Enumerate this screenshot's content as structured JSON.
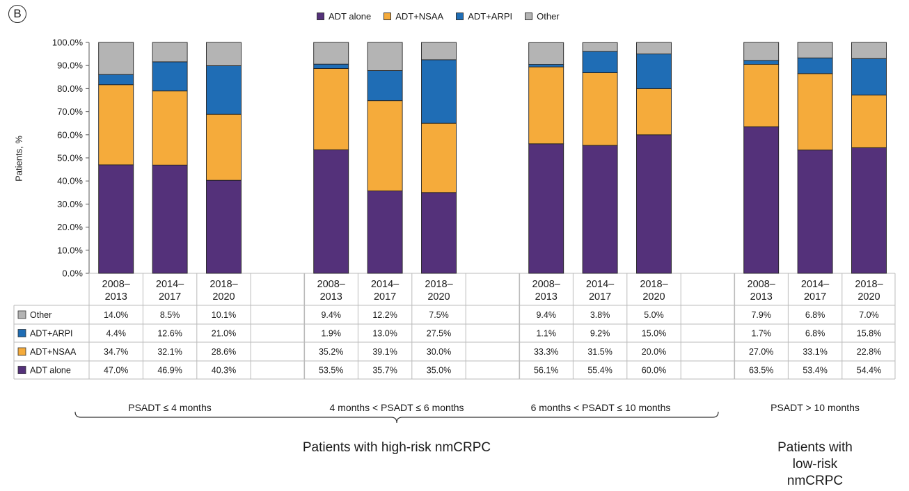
{
  "panel_label": "B",
  "chart_data": {
    "type": "bar",
    "stacked": true,
    "ylabel": "Patients, %",
    "ylim": [
      0,
      100
    ],
    "yticks": [
      "0.0%",
      "10.0%",
      "20.0%",
      "30.0%",
      "40.0%",
      "50.0%",
      "60.0%",
      "70.0%",
      "80.0%",
      "90.0%",
      "100.0%"
    ],
    "legend_position": "top-center",
    "series": [
      {
        "name": "ADT alone",
        "color": "#54317a"
      },
      {
        "name": "ADT+NSAA",
        "color": "#f5ab3b"
      },
      {
        "name": "ADT+ARPI",
        "color": "#1f6db5"
      },
      {
        "name": "Other",
        "color": "#b4b4b4"
      }
    ],
    "groups": [
      {
        "label": "PSADT ≤ 4 months",
        "bars": [
          {
            "period": [
              "2008–",
              "2013"
            ],
            "values": {
              "ADT alone": 47.0,
              "ADT+NSAA": 34.7,
              "ADT+ARPI": 4.4,
              "Other": 14.0
            },
            "labels": {
              "ADT alone": "47.0%",
              "ADT+NSAA": "34.7%",
              "ADT+ARPI": "4.4%",
              "Other": "14.0%"
            }
          },
          {
            "period": [
              "2014–",
              "2017"
            ],
            "values": {
              "ADT alone": 46.9,
              "ADT+NSAA": 32.1,
              "ADT+ARPI": 12.6,
              "Other": 8.5
            },
            "labels": {
              "ADT alone": "46.9%",
              "ADT+NSAA": "32.1%",
              "ADT+ARPI": "12.6%",
              "Other": "8.5%"
            }
          },
          {
            "period": [
              "2018–",
              "2020"
            ],
            "values": {
              "ADT alone": 40.3,
              "ADT+NSAA": 28.6,
              "ADT+ARPI": 21.0,
              "Other": 10.1
            },
            "labels": {
              "ADT alone": "40.3%",
              "ADT+NSAA": "28.6%",
              "ADT+ARPI": "21.0%",
              "Other": "10.1%"
            }
          }
        ]
      },
      {
        "label": "4 months < PSADT ≤ 6 months",
        "bars": [
          {
            "period": [
              "2008–",
              "2013"
            ],
            "values": {
              "ADT alone": 53.5,
              "ADT+NSAA": 35.2,
              "ADT+ARPI": 1.9,
              "Other": 9.4
            },
            "labels": {
              "ADT alone": "53.5%",
              "ADT+NSAA": "35.2%",
              "ADT+ARPI": "1.9%",
              "Other": "9.4%"
            }
          },
          {
            "period": [
              "2014–",
              "2017"
            ],
            "values": {
              "ADT alone": 35.7,
              "ADT+NSAA": 39.1,
              "ADT+ARPI": 13.0,
              "Other": 12.2
            },
            "labels": {
              "ADT alone": "35.7%",
              "ADT+NSAA": "39.1%",
              "ADT+ARPI": "13.0%",
              "Other": "12.2%"
            }
          },
          {
            "period": [
              "2018–",
              "2020"
            ],
            "values": {
              "ADT alone": 35.0,
              "ADT+NSAA": 30.0,
              "ADT+ARPI": 27.5,
              "Other": 7.5
            },
            "labels": {
              "ADT alone": "35.0%",
              "ADT+NSAA": "30.0%",
              "ADT+ARPI": "27.5%",
              "Other": "7.5%"
            }
          }
        ]
      },
      {
        "label": "6 months < PSADT ≤ 10 months",
        "bars": [
          {
            "period": [
              "2008–",
              "2013"
            ],
            "values": {
              "ADT alone": 56.1,
              "ADT+NSAA": 33.3,
              "ADT+ARPI": 1.1,
              "Other": 9.4
            },
            "labels": {
              "ADT alone": "56.1%",
              "ADT+NSAA": "33.3%",
              "ADT+ARPI": "1.1%",
              "Other": "9.4%"
            }
          },
          {
            "period": [
              "2014–",
              "2017"
            ],
            "values": {
              "ADT alone": 55.4,
              "ADT+NSAA": 31.5,
              "ADT+ARPI": 9.2,
              "Other": 3.8
            },
            "labels": {
              "ADT alone": "55.4%",
              "ADT+NSAA": "31.5%",
              "ADT+ARPI": "9.2%",
              "Other": "3.8%"
            }
          },
          {
            "period": [
              "2018–",
              "2020"
            ],
            "values": {
              "ADT alone": 60.0,
              "ADT+NSAA": 20.0,
              "ADT+ARPI": 15.0,
              "Other": 5.0
            },
            "labels": {
              "ADT alone": "60.0%",
              "ADT+NSAA": "20.0%",
              "ADT+ARPI": "15.0%",
              "Other": "5.0%"
            }
          }
        ]
      },
      {
        "label": "PSADT > 10 months",
        "bars": [
          {
            "period": [
              "2008–",
              "2013"
            ],
            "values": {
              "ADT alone": 63.5,
              "ADT+NSAA": 27.0,
              "ADT+ARPI": 1.7,
              "Other": 7.9
            },
            "labels": {
              "ADT alone": "63.5%",
              "ADT+NSAA": "27.0%",
              "ADT+ARPI": "1.7%",
              "Other": "7.9%"
            }
          },
          {
            "period": [
              "2014–",
              "2017"
            ],
            "values": {
              "ADT alone": 53.4,
              "ADT+NSAA": 33.1,
              "ADT+ARPI": 6.8,
              "Other": 6.8
            },
            "labels": {
              "ADT alone": "53.4%",
              "ADT+NSAA": "33.1%",
              "ADT+ARPI": "6.8%",
              "Other": "6.8%"
            }
          },
          {
            "period": [
              "2018–",
              "2020"
            ],
            "values": {
              "ADT alone": 54.4,
              "ADT+NSAA": 22.8,
              "ADT+ARPI": 15.8,
              "Other": 7.0
            },
            "labels": {
              "ADT alone": "54.4%",
              "ADT+NSAA": "22.8%",
              "ADT+ARPI": "15.8%",
              "Other": "7.0%"
            }
          }
        ]
      }
    ],
    "table_row_order": [
      "Other",
      "ADT+ARPI",
      "ADT+NSAA",
      "ADT alone"
    ],
    "cohort_labels": {
      "high_risk": "Patients with high-risk nmCRPC",
      "low_risk": [
        "Patients with",
        "low-risk nmCRPC"
      ]
    }
  }
}
